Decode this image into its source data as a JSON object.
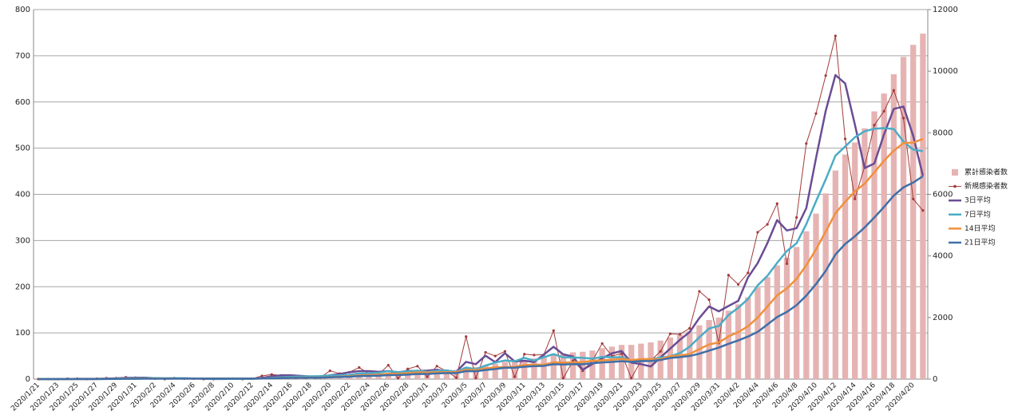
{
  "chart_data": {
    "type": "combo",
    "categories": [
      "2020/1/21",
      null,
      "2020/1/23",
      null,
      "2020/1/25",
      null,
      "2020/1/27",
      null,
      "2020/1/29",
      null,
      "2020/1/31",
      null,
      "2020/2/2",
      null,
      "2020/2/4",
      null,
      "2020/2/6",
      null,
      "2020/2/8",
      null,
      "2020/2/10",
      null,
      "2020/2/12",
      null,
      "2020/2/14",
      null,
      "2020/2/16",
      null,
      "2020/2/18",
      null,
      "2020/2/20",
      null,
      "2020/2/22",
      null,
      "2020/2/24",
      null,
      "2020/2/26",
      null,
      "2020/2/28",
      null,
      "2020/3/1",
      null,
      "2020/3/3",
      null,
      "2020/3/5",
      null,
      "2020/3/7",
      null,
      "2020/3/9",
      null,
      "2020/3/11",
      null,
      "2020/3/13",
      null,
      "2020/3/15",
      null,
      "2020/3/17",
      null,
      "2020/3/19",
      null,
      "2020/3/21",
      null,
      "2020/3/23",
      null,
      "2020/3/25",
      null,
      "2020/3/27",
      null,
      "2020/3/29",
      null,
      "2020/3/31",
      null,
      "2020/4/2",
      null,
      "2020/4/4",
      null,
      "2020/4/6",
      null,
      "2020/4/8",
      null,
      "2020/4/10",
      null,
      "2020/4/12",
      null,
      "2020/4/14",
      null,
      "2020/4/16",
      null,
      "2020/4/18",
      null,
      "2020/4/20",
      null
    ],
    "ylim": [
      0,
      800
    ],
    "yticks": [
      0,
      100,
      200,
      300,
      400,
      500,
      600,
      700,
      800
    ],
    "y2lim": [
      0,
      12000
    ],
    "y2ticks": [
      0,
      2000,
      4000,
      6000,
      8000,
      10000,
      12000
    ],
    "grid": true,
    "legend": "right",
    "series": [
      {
        "name": "累計感染者数",
        "type": "bar",
        "axis": "y2",
        "color": "#e6b3b3",
        "values": [
          0,
          0,
          0,
          1,
          2,
          2,
          3,
          5,
          7,
          11,
          14,
          16,
          17,
          17,
          19,
          20,
          21,
          21,
          21,
          22,
          23,
          23,
          24,
          31,
          41,
          49,
          56,
          62,
          66,
          69,
          87,
          99,
          114,
          139,
          151,
          161,
          191,
          193,
          215,
          243,
          248,
          276,
          293,
          296,
          388,
          390,
          448,
          498,
          558,
          563,
          617,
          669,
          722,
          827,
          829,
          869,
          887,
          927,
          1004,
          1054,
          1109,
          1111,
          1151,
          1191,
          1251,
          1349,
          1446,
          1556,
          1746,
          1918,
          1996,
          2221,
          2426,
          2656,
          2974,
          3309,
          3689,
          3939,
          4289,
          4799,
          5374,
          6031,
          6774,
          7294,
          7684,
          8144,
          8694,
          9274,
          9899,
          10464,
          10854,
          11219
        ]
      },
      {
        "name": "新規感染者数",
        "type": "line",
        "marker": true,
        "width": 1,
        "color": "#a33a3a",
        "values": [
          0,
          0,
          0,
          1,
          1,
          0,
          1,
          2,
          2,
          4,
          3,
          2,
          1,
          0,
          2,
          1,
          1,
          0,
          0,
          1,
          1,
          0,
          1,
          7,
          10,
          8,
          7,
          6,
          4,
          3,
          18,
          12,
          15,
          25,
          12,
          10,
          30,
          2,
          22,
          28,
          5,
          28,
          17,
          3,
          92,
          2,
          58,
          50,
          60,
          5,
          54,
          52,
          53,
          105,
          2,
          40,
          18,
          40,
          77,
          50,
          55,
          2,
          40,
          40,
          60,
          98,
          97,
          110,
          190,
          172,
          78,
          225,
          205,
          230,
          318,
          335,
          380,
          250,
          350,
          510,
          575,
          657,
          743,
          520,
          390,
          460,
          550,
          580,
          625,
          565,
          390,
          365
        ]
      },
      {
        "name": "3日平均",
        "type": "line",
        "width": 2.5,
        "color": "#6a4d94",
        "values": [
          0,
          0,
          0,
          0.3,
          0.7,
          0.7,
          0.7,
          1,
          1.7,
          2.7,
          3,
          3,
          2,
          1,
          1,
          1,
          1.3,
          0.7,
          0.3,
          0.3,
          0.7,
          0.7,
          0.7,
          2.7,
          6,
          8.3,
          8.3,
          7,
          5.7,
          4.3,
          8.3,
          11,
          15,
          17.3,
          17.3,
          15.7,
          17.3,
          14,
          18,
          17.3,
          18.3,
          20.3,
          16.7,
          16,
          37.3,
          32.3,
          50.7,
          36.7,
          56,
          38.3,
          39.7,
          37,
          53,
          70,
          53.3,
          49,
          20,
          32.7,
          45,
          55.7,
          60.7,
          35.7,
          32.3,
          27.3,
          46.7,
          66,
          85,
          101.7,
          132.3,
          157.3,
          146.7,
          158.3,
          169.3,
          220,
          251,
          294.3,
          344.3,
          321.7,
          326.7,
          370,
          478.3,
          580.7,
          658.3,
          640,
          551,
          456.7,
          466.7,
          530,
          585,
          590,
          526.7,
          440
        ]
      },
      {
        "name": "7日平均",
        "type": "line",
        "width": 2.5,
        "color": "#4bacc6",
        "values": [
          0,
          0,
          0,
          0.1,
          0.3,
          0.3,
          0.4,
          0.7,
          1,
          1.6,
          1.9,
          2,
          2.1,
          2,
          2,
          1.9,
          1.4,
          1,
          0.7,
          0.7,
          0.9,
          0.6,
          0.6,
          1.4,
          2.9,
          4,
          5,
          5.6,
          6.1,
          6.4,
          7.9,
          8.3,
          9.3,
          12.1,
          12.7,
          13.6,
          17.4,
          15.1,
          16.7,
          18.4,
          15.6,
          17.9,
          18.9,
          15.6,
          25,
          21.3,
          29.3,
          35.7,
          40.3,
          38.6,
          45.9,
          40.1,
          47.4,
          54.1,
          47,
          46.6,
          46.1,
          44.3,
          47.9,
          47.4,
          47.4,
          40.3,
          40.3,
          43.4,
          46.3,
          49.3,
          56.3,
          70.1,
          90.7,
          109.6,
          115,
          138.6,
          154.4,
          173.3,
          202.9,
          223.6,
          251.6,
          277.3,
          294,
          335.4,
          384.9,
          432.3,
          483.7,
          503.6,
          523.6,
          536.4,
          542,
          543.4,
          541.4,
          514.3,
          497,
          493.6
        ]
      },
      {
        "name": "14日平均",
        "type": "line",
        "width": 2.5,
        "color": "#f0913c",
        "values": [
          0,
          0,
          0,
          0.1,
          0.1,
          0.1,
          0.2,
          0.4,
          0.6,
          0.9,
          1.1,
          1.2,
          1.3,
          1.3,
          1.4,
          1.4,
          1.4,
          1.4,
          1.4,
          1.3,
          1.2,
          1.2,
          1,
          1.2,
          1.9,
          2.4,
          2.9,
          3.3,
          3.4,
          3.4,
          4.4,
          5.2,
          6.3,
          8,
          8.8,
          9.5,
          11.7,
          11.4,
          12.9,
          14.5,
          14.3,
          15,
          15.2,
          15.3,
          20.2,
          19.4,
          23,
          25.4,
          25.9,
          26.3,
          30.5,
          31.3,
          31.2,
          36.2,
          35.6,
          36.2,
          37,
          39.6,
          40.7,
          41.6,
          43.9,
          41,
          43.3,
          43.4,
          43,
          49.5,
          50.9,
          54.3,
          65,
          75,
          79.2,
          92.4,
          101.6,
          114.4,
          133.2,
          157,
          181.3,
          196.3,
          217,
          246.4,
          280.6,
          319.6,
          359.1,
          384,
          406.3,
          423.1,
          447.7,
          472.7,
          494.6,
          511.1,
          511.8,
          520
        ]
      },
      {
        "name": "21日平均",
        "type": "line",
        "width": 2.5,
        "color": "#3f6fa8",
        "values": [
          0,
          0,
          0,
          0.1,
          0.1,
          0.1,
          0.1,
          0.3,
          0.4,
          0.6,
          0.7,
          0.8,
          0.9,
          0.9,
          1,
          1,
          1.1,
          1.1,
          1.1,
          1.1,
          1.1,
          1.1,
          1.1,
          1.4,
          1.8,
          2.2,
          2.5,
          2.8,
          3,
          3.1,
          3.9,
          4.5,
          5.2,
          6.4,
          6.9,
          7.3,
          8.7,
          8.8,
          9.7,
          11,
          11.1,
          12.3,
          12.9,
          12.9,
          17.2,
          16.9,
          19.6,
          21.9,
          24.6,
          24.6,
          26.8,
          28.1,
          28.6,
          32.2,
          31.5,
          32.4,
          32.1,
          34.4,
          36,
          37.1,
          38.6,
          37.4,
          38.8,
          39.1,
          41.4,
          45.7,
          47.6,
          50,
          55,
          61.7,
          68.2,
          76.4,
          83.7,
          92.1,
          102.2,
          118.1,
          134.3,
          145.3,
          160.1,
          180.7,
          205.7,
          234.4,
          269.7,
          292.5,
          309.2,
          328.2,
          349.8,
          372.8,
          397.3,
          415.1,
          425.5,
          439.2
        ]
      }
    ]
  }
}
